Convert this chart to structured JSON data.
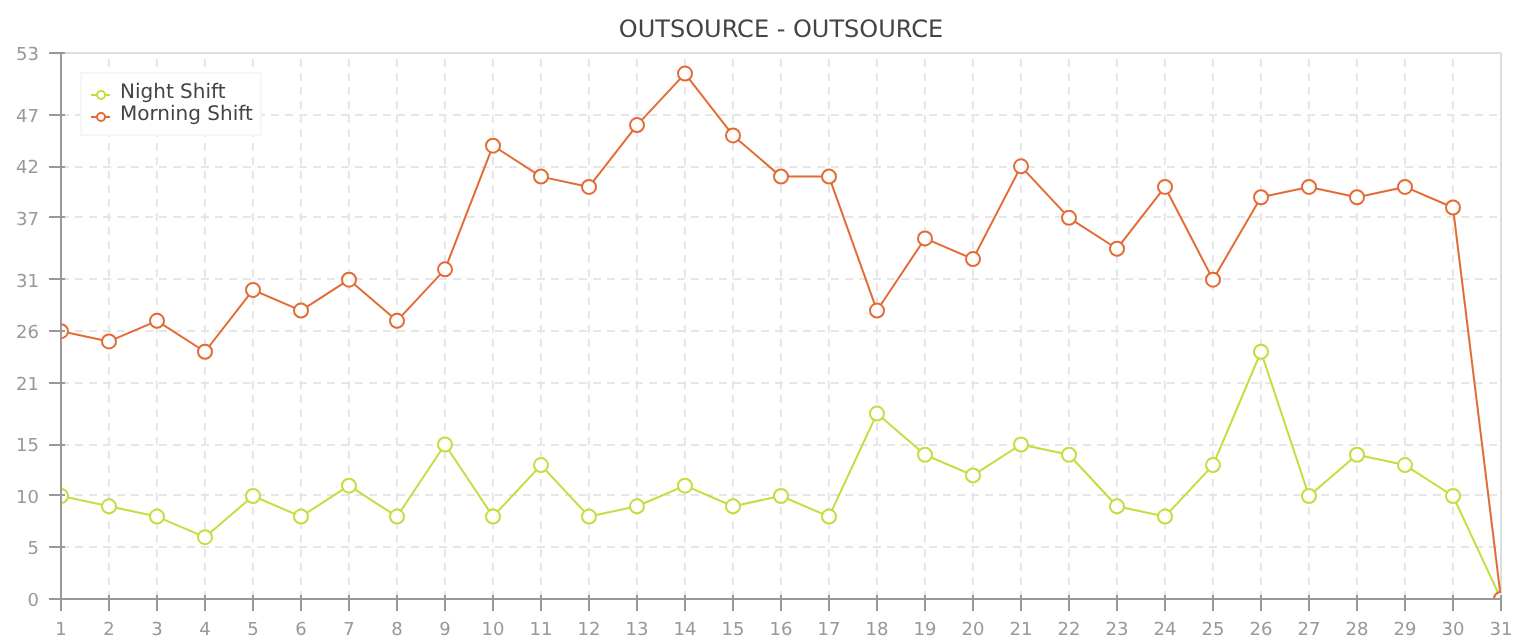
{
  "chart_data": {
    "type": "line",
    "title": "OUTSOURCE - OUTSOURCE",
    "x": [
      1,
      2,
      3,
      4,
      5,
      6,
      7,
      8,
      9,
      10,
      11,
      12,
      13,
      14,
      15,
      16,
      17,
      18,
      19,
      20,
      21,
      22,
      23,
      24,
      25,
      26,
      27,
      28,
      29,
      30,
      31
    ],
    "series": [
      {
        "name": "Night Shift",
        "color": "#c3dd3c",
        "values": [
          10,
          9,
          8,
          6,
          10,
          8,
          11,
          8,
          15,
          8,
          13,
          8,
          9,
          11,
          9,
          10,
          8,
          18,
          14,
          12,
          15,
          14,
          9,
          8,
          13,
          24,
          10,
          14,
          13,
          10,
          0
        ]
      },
      {
        "name": "Morning Shift",
        "color": "#e36a32",
        "values": [
          26,
          25,
          27,
          24,
          30,
          28,
          31,
          27,
          32,
          44,
          41,
          40,
          46,
          51,
          45,
          41,
          41,
          28,
          35,
          33,
          42,
          37,
          34,
          40,
          31,
          39,
          40,
          39,
          40,
          38,
          0
        ]
      }
    ],
    "xlim": [
      1,
      31
    ],
    "xticks": [
      1,
      2,
      3,
      4,
      5,
      6,
      7,
      8,
      9,
      10,
      11,
      12,
      13,
      14,
      15,
      16,
      17,
      18,
      19,
      20,
      21,
      22,
      23,
      24,
      25,
      26,
      27,
      28,
      29,
      30,
      31
    ],
    "ylim": [
      0,
      53
    ],
    "yticks": [
      0,
      5,
      10,
      15,
      21,
      26,
      31,
      37,
      42,
      47,
      53
    ],
    "grid": true,
    "legend": "top left",
    "marker": "circle",
    "line_style": "solid"
  }
}
